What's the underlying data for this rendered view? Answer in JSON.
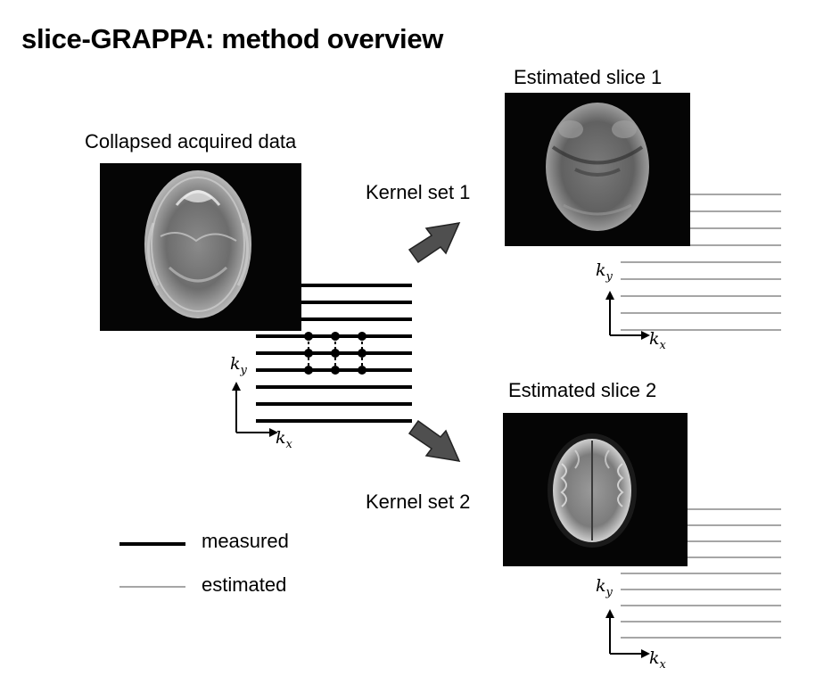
{
  "title": "slice-GRAPPA: method overview",
  "collapsed_label": "Collapsed acquired data",
  "slice1_label": "Estimated slice 1",
  "slice2_label": "Estimated slice 2",
  "kernel1_label": "Kernel set 1",
  "kernel2_label": "Kernel set 2",
  "axis_ky": "k",
  "axis_ky_sub": "y",
  "axis_kx": "k",
  "axis_kx_sub": "x",
  "legend": {
    "measured": "measured",
    "estimated": "estimated"
  },
  "colors": {
    "measured_line": "#000000",
    "estimated_line": "#a6a6a6",
    "arrow_fill": "#4f4f4f",
    "image_bg": "#050505"
  },
  "icons": {
    "brain_image": "mri-axial-brain-icon",
    "arrow": "block-arrow-icon"
  }
}
